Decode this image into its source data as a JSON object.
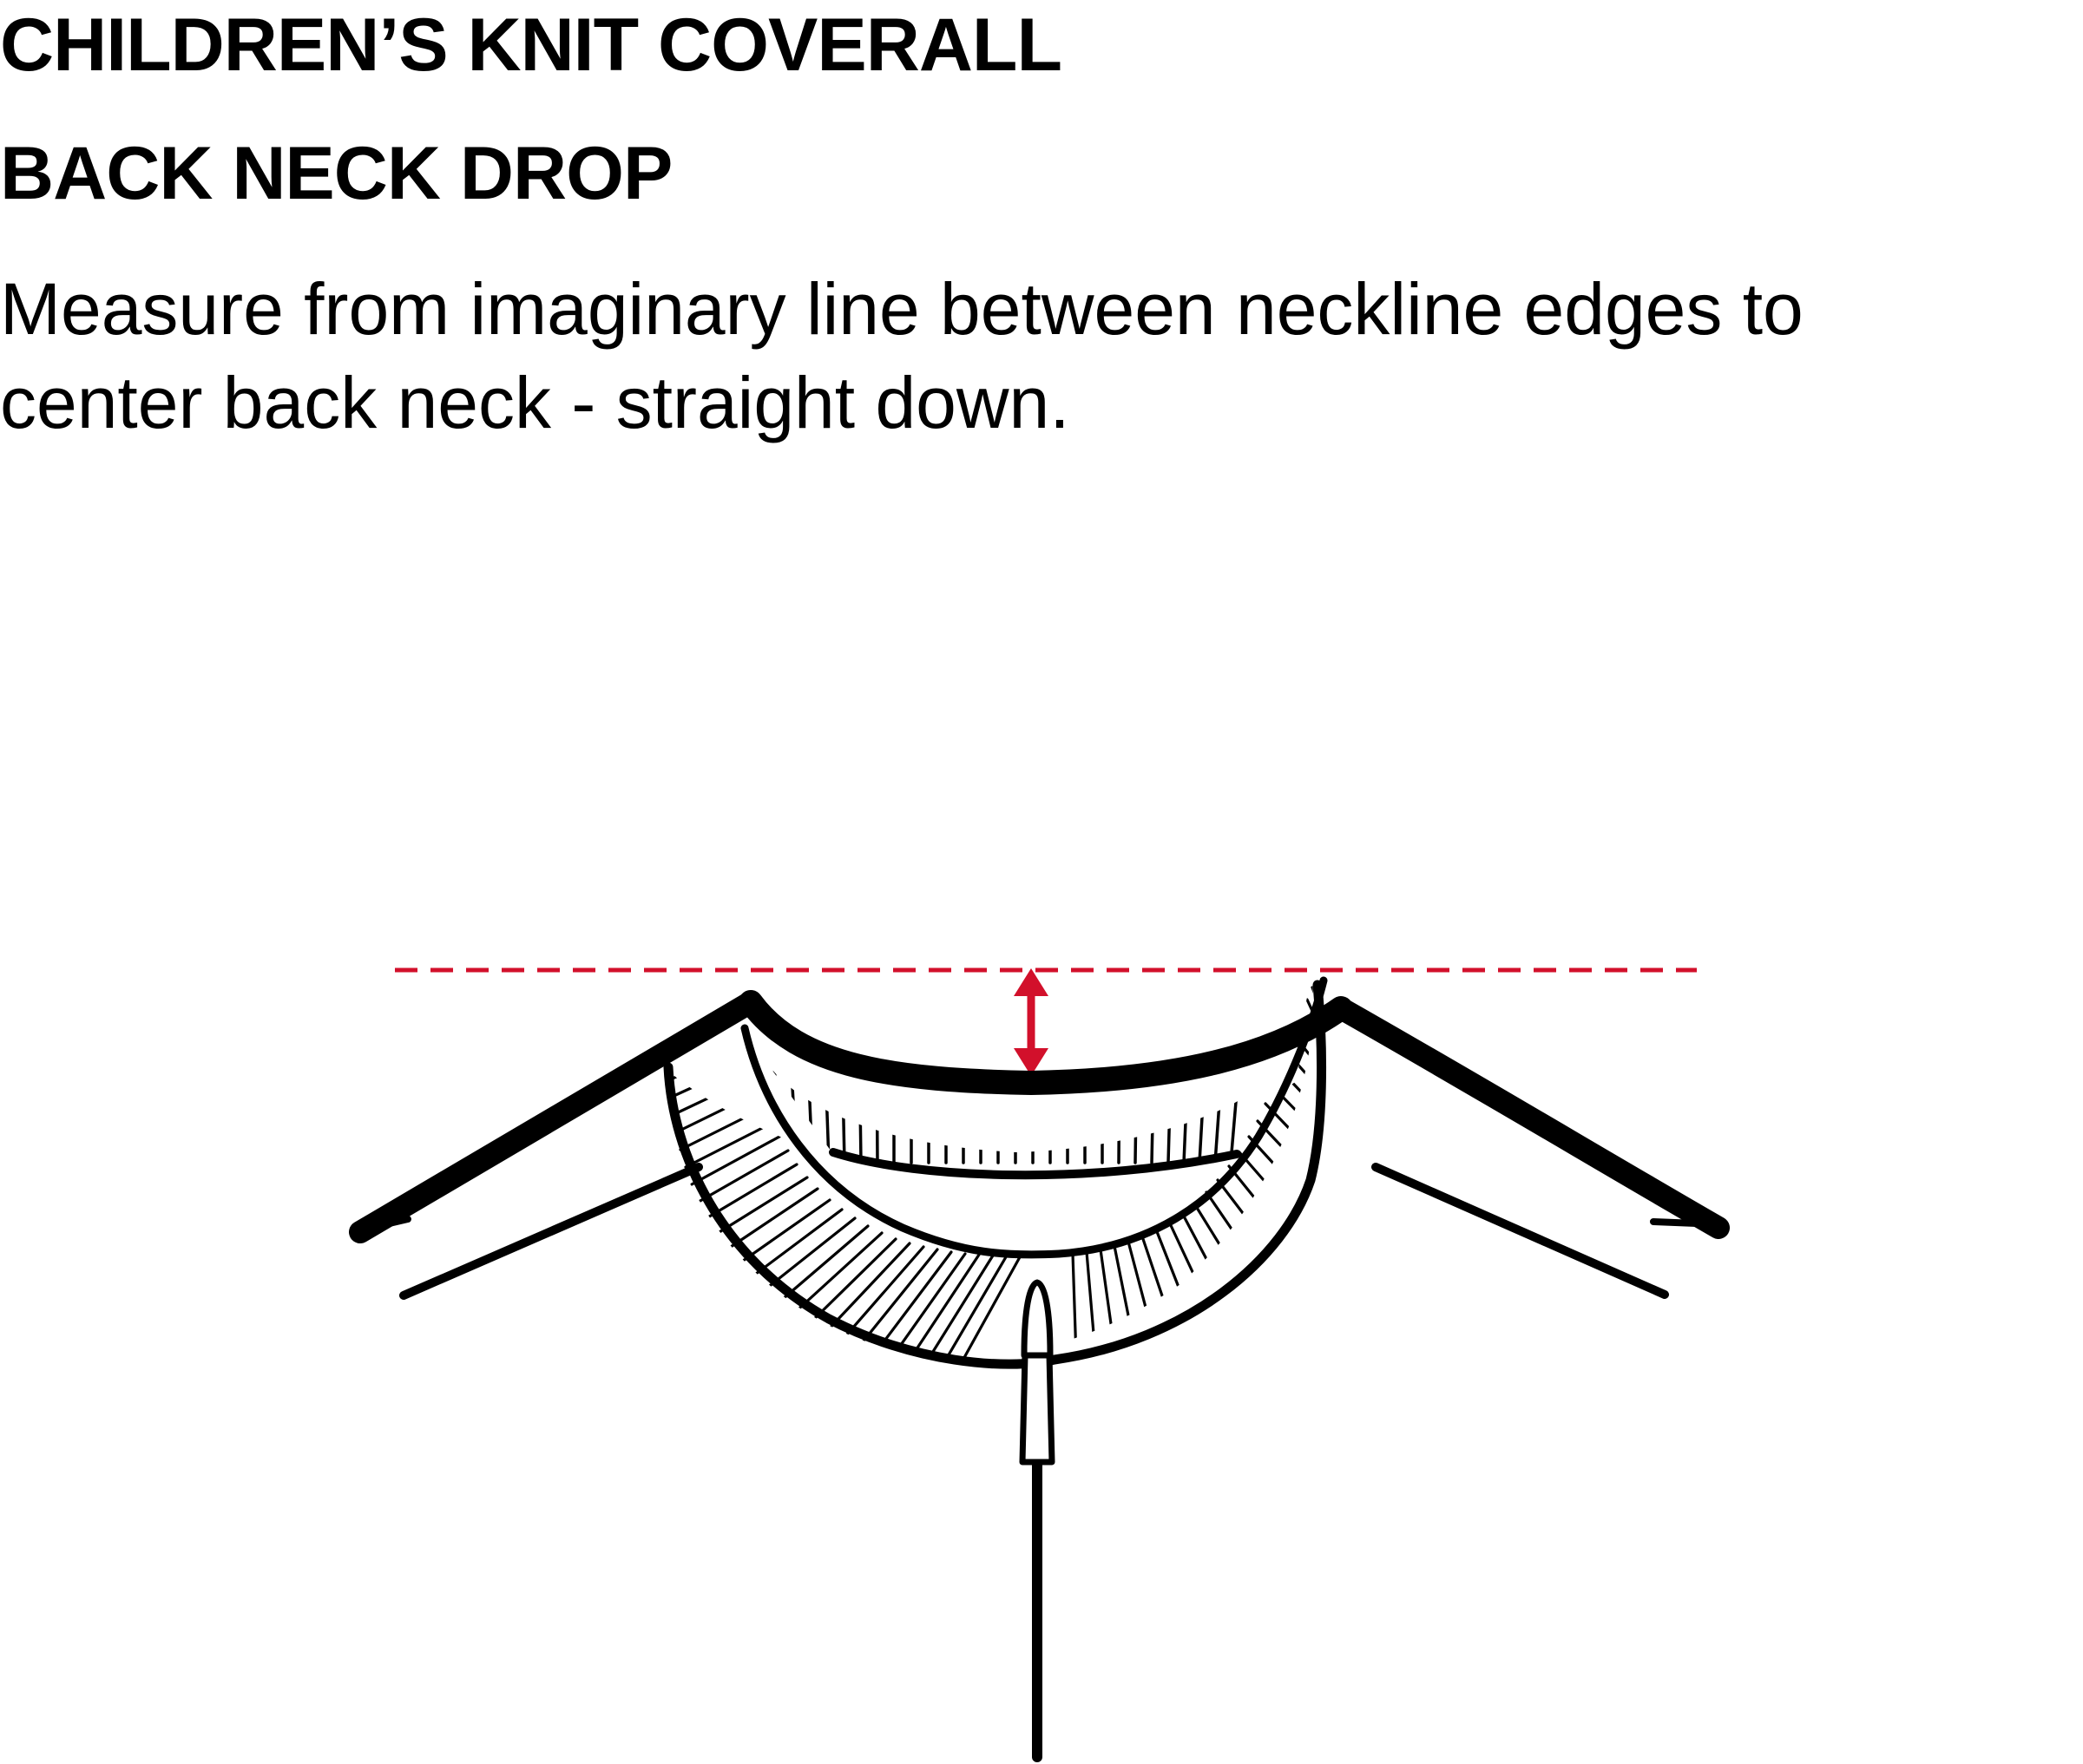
{
  "header": {
    "title": "CHILDREN’S KNIT COVERALL",
    "subtitle": "BACK NECK DROP",
    "instructions": "Measure from imaginary line between neckline edges to center back neck - straight down."
  },
  "diagram": {
    "garment_color": "#000000",
    "measure_color": "#d2102b",
    "icons": [
      "neckline-reference-line",
      "measurement-arrow",
      "zipper-pull-icon"
    ]
  }
}
